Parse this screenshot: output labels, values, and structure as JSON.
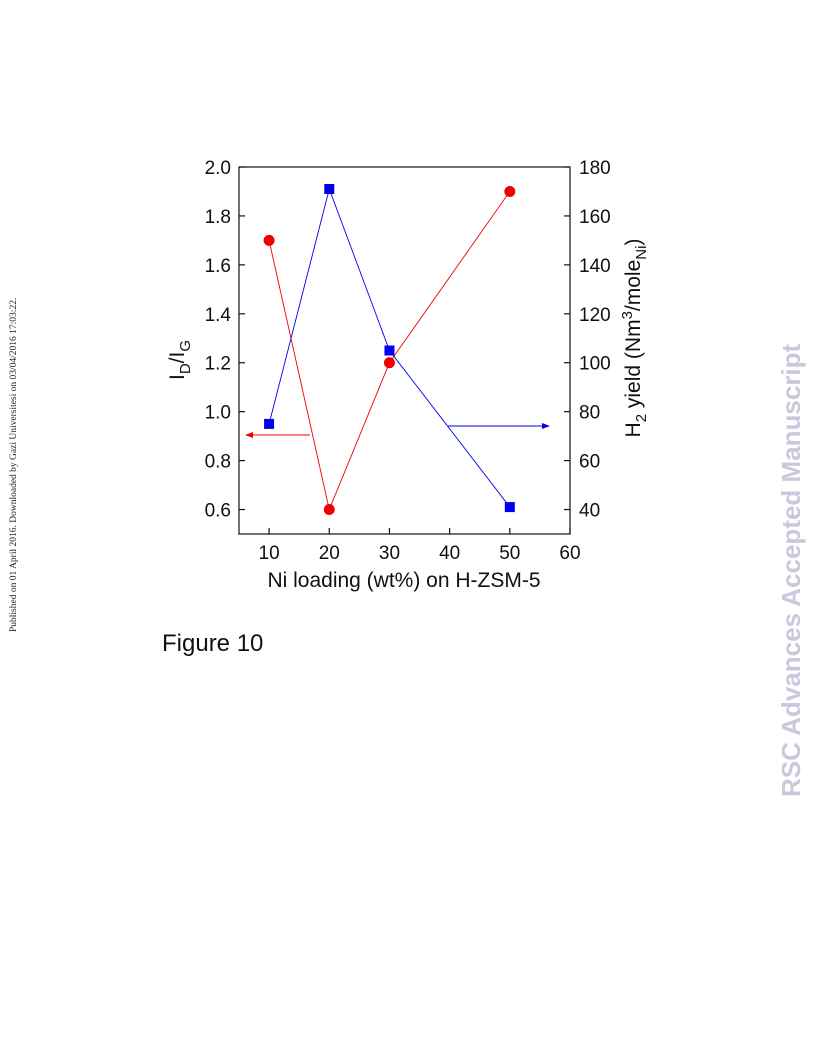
{
  "side_note": "Published on 01 April 2016. Downloaded by Gazi Universitesi on 03/04/2016 17:03:22.",
  "journal_watermark": "RSC Advances Accepted Manuscript",
  "figure_caption": "Figure 10",
  "chart_data": {
    "type": "line",
    "xlabel": "Ni loading (wt%) on H-ZSM-5",
    "ylabel_left": {
      "base": "I",
      "sub1": "D",
      "slash": "/I",
      "sub2": "G"
    },
    "ylabel_right": {
      "p1": "H",
      "sub": "2",
      "p2": " yield (Nm",
      "sup": "3",
      "p3": "/mole",
      "sub2": "Ni",
      "p4": ")"
    },
    "xlim": [
      5,
      60
    ],
    "ylim_left": [
      0.5,
      2.0
    ],
    "ylim_right": [
      30,
      180
    ],
    "x_ticks": [
      "10",
      "20",
      "30",
      "40",
      "50",
      "60"
    ],
    "x_tick_values": [
      10,
      20,
      30,
      40,
      50,
      60
    ],
    "y_left_ticks": [
      "0.6",
      "0.8",
      "1.0",
      "1.2",
      "1.4",
      "1.6",
      "1.8",
      "2.0"
    ],
    "y_left_tick_values": [
      0.6,
      0.8,
      1.0,
      1.2,
      1.4,
      1.6,
      1.8,
      2.0
    ],
    "y_right_ticks": [
      "40",
      "60",
      "80",
      "100",
      "120",
      "140",
      "160",
      "180"
    ],
    "y_right_tick_values": [
      40,
      60,
      80,
      100,
      120,
      140,
      160,
      180
    ],
    "series": [
      {
        "axis": "left",
        "marker": "circle",
        "color": "#ee0000",
        "x": [
          10,
          20,
          30,
          50
        ],
        "y": [
          1.7,
          0.6,
          1.2,
          1.9
        ]
      },
      {
        "axis": "right",
        "marker": "square",
        "color": "#0000ee",
        "x": [
          10,
          20,
          30,
          50
        ],
        "y": [
          75,
          171,
          105,
          41
        ]
      }
    ],
    "axis_arrows": [
      {
        "points_to": "left",
        "color": "#ee0000"
      },
      {
        "points_to": "right",
        "color": "#0000ee"
      }
    ]
  }
}
